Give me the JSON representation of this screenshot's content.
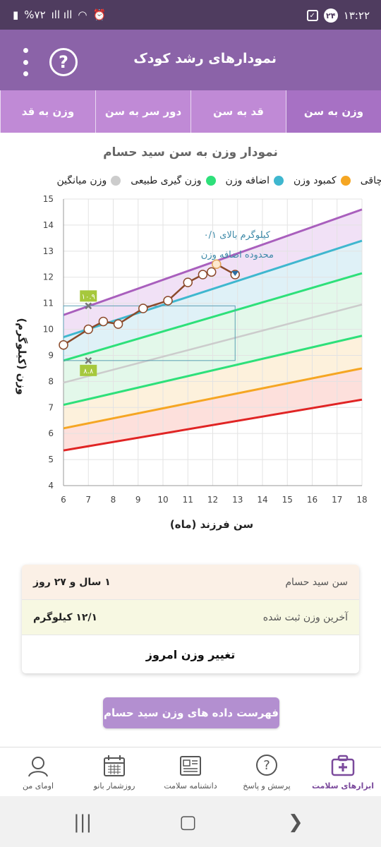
{
  "status": {
    "time": "۱۳:۲۲",
    "notif_count": "۲۴",
    "battery": "%۷۲"
  },
  "app_bar": {
    "title": "نمودارهای رشد کودک"
  },
  "tabs": [
    {
      "label": "وزن به سن",
      "active": true
    },
    {
      "label": "قد به سن",
      "active": false
    },
    {
      "label": "دور سر به سن",
      "active": false
    },
    {
      "label": "وزن به قد",
      "active": false
    }
  ],
  "legend": [
    {
      "label": "چاقی",
      "color": "#a95fbd"
    },
    {
      "label": "کمبود وزن",
      "color": "#f5a623"
    },
    {
      "label": "اضافه وزن",
      "color": "#3fb7cf"
    },
    {
      "label": "وزن گیری طبیعی",
      "color": "#2ee07a"
    },
    {
      "label": "وزن میانگین",
      "color": "#cccccc"
    }
  ],
  "chart_data": {
    "type": "line",
    "title": "نمودار وزن به سن سید حسام",
    "xlabel": "سن فرزند (ماه)",
    "ylabel": "وزن (کیلوگرم)",
    "xlim": [
      6,
      18
    ],
    "ylim": [
      4,
      15
    ],
    "x_ticks": [
      6,
      7,
      8,
      9,
      10,
      11,
      12,
      13,
      14,
      15,
      16,
      17,
      18
    ],
    "y_ticks": [
      4,
      5,
      6,
      7,
      8,
      9,
      10,
      11,
      12,
      13,
      14,
      15
    ],
    "grid": true,
    "reference_curves": [
      {
        "id": "minus3",
        "color": "#e02424",
        "x": [
          6,
          18
        ],
        "y": [
          5.35,
          7.3
        ]
      },
      {
        "id": "minus2",
        "color": "#f5a623",
        "x": [
          6,
          18
        ],
        "y": [
          6.2,
          8.5
        ]
      },
      {
        "id": "minus1",
        "color": "#2ee07a",
        "x": [
          6,
          18
        ],
        "y": [
          7.1,
          9.75
        ]
      },
      {
        "id": "median",
        "color": "#cccccc",
        "x": [
          6,
          18
        ],
        "y": [
          7.95,
          10.95
        ]
      },
      {
        "id": "plus1",
        "color": "#2ee07a",
        "x": [
          6,
          18
        ],
        "y": [
          8.8,
          12.15
        ]
      },
      {
        "id": "plus2",
        "color": "#3fb7cf",
        "x": [
          6,
          18
        ],
        "y": [
          9.7,
          13.4
        ]
      },
      {
        "id": "plus3",
        "color": "#a95fbd",
        "x": [
          6,
          18
        ],
        "y": [
          10.55,
          14.6
        ]
      }
    ],
    "series": [
      {
        "x": [
          6.0,
          7.0,
          7.6,
          8.2,
          9.2,
          10.2,
          11.0,
          11.6,
          11.95,
          12.15,
          12.9
        ],
        "y": [
          9.4,
          10.0,
          10.3,
          10.2,
          10.8,
          11.1,
          11.8,
          12.1,
          12.2,
          12.5,
          12.1
        ]
      }
    ],
    "annotations": {
      "line1": "۰/۱ کیلوگرم بالای",
      "line2": "محدوده اضافه وزن",
      "box_upper": "۱۰.۹",
      "box_lower": "۸.۸",
      "marker_upper": {
        "x": 7.0,
        "y": 10.9
      },
      "marker_lower": {
        "x": 7.0,
        "y": 8.8
      },
      "range_rect": {
        "x0": 6,
        "x1": 12.9,
        "y0": 8.8,
        "y1": 10.9
      }
    }
  },
  "info": {
    "age_label": "سن سید حسام",
    "age_value": "۱ سال و ۲۷ روز",
    "last_weight_label": "آخرین وزن ثبت شده",
    "last_weight_value": "۱۲/۱ کیلوگرم",
    "change_today": "تغییر وزن امروز"
  },
  "list_button": "فهرست داده های وزن سید حسام",
  "bottom_nav": [
    {
      "label": "ابزارهای سلامت",
      "icon": "medical-kit-icon",
      "active": true
    },
    {
      "label": "پرسش و پاسخ",
      "icon": "question-bubble-icon",
      "active": false
    },
    {
      "label": "دانشنامه سلامت",
      "icon": "newspaper-icon",
      "active": false
    },
    {
      "label": "روزشمار بانو",
      "icon": "calendar-icon",
      "active": false
    },
    {
      "label": "اومای من",
      "icon": "profile-icon",
      "active": false
    }
  ]
}
